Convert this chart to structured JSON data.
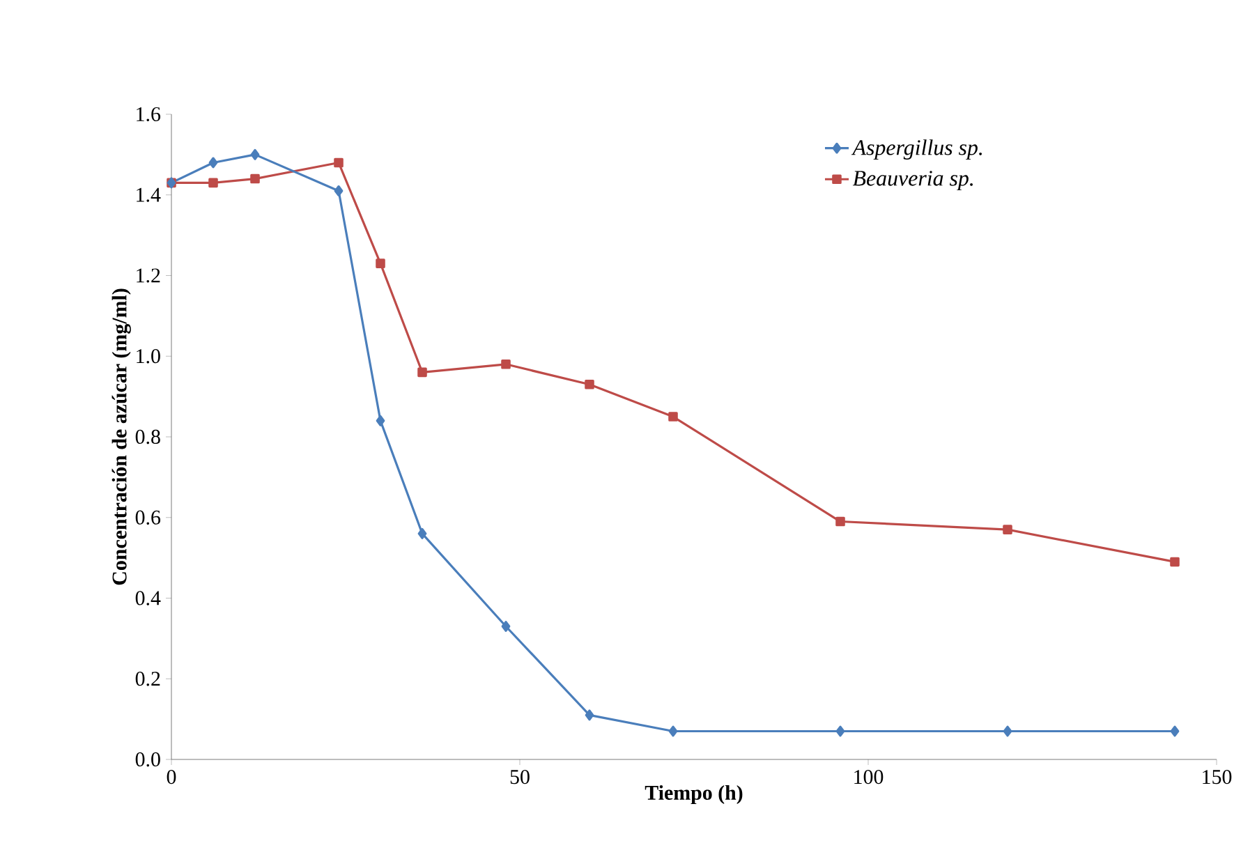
{
  "chart_data": {
    "type": "line",
    "xlabel": "Tiempo (h)",
    "ylabel": "Concentración de azúcar (mg/ml)",
    "xlim": [
      0,
      150
    ],
    "xticks": [
      0,
      50,
      100,
      150
    ],
    "ylim": [
      0,
      1.6
    ],
    "yticks": [
      {
        "value": 0,
        "label": "0.0"
      },
      {
        "value": 0.2,
        "label": "0.2"
      },
      {
        "value": 0.4,
        "label": "0.4"
      },
      {
        "value": 0.6,
        "label": "0.6"
      },
      {
        "value": 0.8,
        "label": "0.8"
      },
      {
        "value": 1.0,
        "label": "1.0"
      },
      {
        "value": 1.2,
        "label": "1.2"
      },
      {
        "value": 1.4,
        "label": "1.4"
      },
      {
        "value": 1.6,
        "label": "1.6"
      }
    ],
    "x": [
      0,
      6,
      12,
      24,
      30,
      36,
      48,
      60,
      72,
      96,
      120,
      144
    ],
    "series": [
      {
        "name": "Aspergillus sp.",
        "color": "#4a7ebb",
        "marker": "diamond",
        "values": [
          1.43,
          1.48,
          1.5,
          1.41,
          0.84,
          0.56,
          0.33,
          0.11,
          0.07,
          0.07,
          0.07,
          0.07
        ]
      },
      {
        "name": "Beauveria sp.",
        "color": "#be4b48",
        "marker": "square",
        "values": [
          1.43,
          1.43,
          1.44,
          1.48,
          1.23,
          0.96,
          0.98,
          0.93,
          0.85,
          0.59,
          0.57,
          0.49
        ]
      }
    ],
    "grid": false,
    "legend": "top right",
    "line_style": "solid"
  }
}
